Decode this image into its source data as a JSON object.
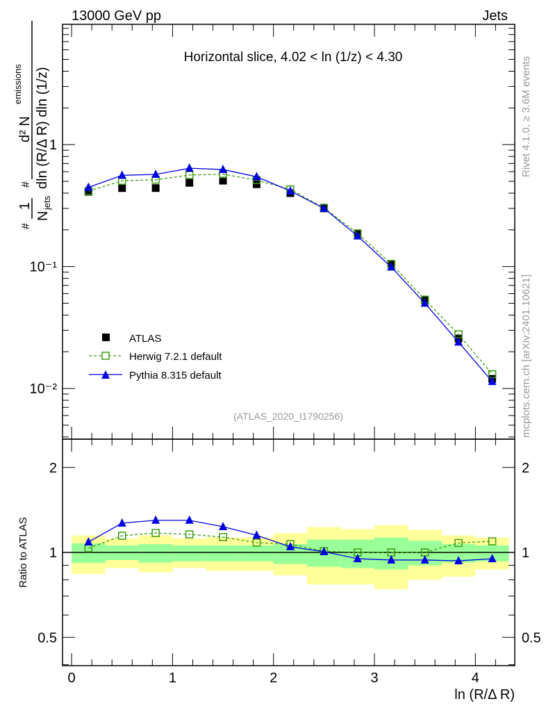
{
  "header": {
    "left": "13000 GeV pp",
    "right": "Jets"
  },
  "side": {
    "rivet": "Rivet 4.1.0, ≥ 3.6M events",
    "mcplots": "mcplots.cern.ch [arXiv:2401.10621]"
  },
  "chart_data": [
    {
      "type": "scatter",
      "title": "Horizontal slice, 4.02 < ln (1/z) < 4.30",
      "annotation": "(ATLAS_2020_I1790256)",
      "ylabel": "#frac{1}{N_{jets}} #frac{d² N_{emissions}}{dln (R/Δ R) dln (1/z)}",
      "ylabel_parts": {
        "one": "1",
        "njets": "N",
        "jets": "jets",
        "d2": "d² N",
        "emissions": "emissions",
        "den": "dln (R/Δ R) dln (1/z)",
        "hash": "#"
      },
      "yscale": "log",
      "ylim": [
        0.00384,
        9.7
      ],
      "yticks": [
        {
          "v": 1,
          "label": "1"
        },
        {
          "v": 0.1,
          "label": "10⁻¹"
        },
        {
          "v": 0.01,
          "label": "10⁻²"
        }
      ],
      "xlim": [
        -0.09,
        4.39
      ],
      "x": [
        0.167,
        0.5,
        0.833,
        1.167,
        1.5,
        1.833,
        2.167,
        2.5,
        2.833,
        3.167,
        3.5,
        3.833,
        4.167
      ],
      "legend": "middle-left",
      "series": [
        {
          "name": "ATLAS",
          "marker": "square-filled",
          "color": "#000000",
          "values": [
            0.41,
            0.44,
            0.44,
            0.486,
            0.506,
            0.473,
            0.4,
            0.3,
            0.187,
            0.105,
            0.053,
            0.0257,
            0.012
          ]
        },
        {
          "name": "Herwig 7.2.1 default",
          "marker": "square-open",
          "line": "dashed",
          "color": "#3a9a10",
          "values": [
            0.415,
            0.505,
            0.515,
            0.563,
            0.573,
            0.512,
            0.43,
            0.303,
            0.187,
            0.105,
            0.0535,
            0.0278,
            0.0131
          ]
        },
        {
          "name": "Pythia 8.315 default",
          "marker": "triangle",
          "line": "solid",
          "color": "#0000e0",
          "values": [
            0.446,
            0.56,
            0.57,
            0.64,
            0.625,
            0.545,
            0.417,
            0.3,
            0.178,
            0.099,
            0.05,
            0.024,
            0.0114
          ]
        }
      ]
    },
    {
      "type": "scatter",
      "ylabel": "Ratio to ATLAS",
      "xlabel": "ln (R/Δ R)",
      "yscale": "log",
      "ylim": [
        0.397,
        2.52
      ],
      "yticks": [
        {
          "v": 2,
          "label": "2"
        },
        {
          "v": 1,
          "label": "1"
        },
        {
          "v": 0.5,
          "label": "0.5"
        }
      ],
      "xticks": [
        {
          "v": 0,
          "label": "0"
        },
        {
          "v": 1,
          "label": "1"
        },
        {
          "v": 2,
          "label": "2"
        },
        {
          "v": 3,
          "label": "3"
        },
        {
          "v": 4,
          "label": "4"
        }
      ],
      "bin_edges": [
        0,
        0.333,
        0.667,
        1,
        1.333,
        1.667,
        2,
        2.333,
        2.667,
        3,
        3.333,
        3.667,
        4,
        4.333
      ],
      "band_yellow": [
        [
          0.84,
          1.15
        ],
        [
          0.88,
          1.12
        ],
        [
          0.85,
          1.15
        ],
        [
          0.88,
          1.12
        ],
        [
          0.86,
          1.13
        ],
        [
          0.86,
          1.13
        ],
        [
          0.83,
          1.17
        ],
        [
          0.77,
          1.23
        ],
        [
          0.77,
          1.21
        ],
        [
          0.74,
          1.25
        ],
        [
          0.8,
          1.2
        ],
        [
          0.82,
          1.15
        ],
        [
          0.87,
          1.13
        ]
      ],
      "band_green": [
        [
          0.918,
          1.077
        ],
        [
          0.94,
          1.06
        ],
        [
          0.92,
          1.07
        ],
        [
          0.93,
          1.06
        ],
        [
          0.93,
          1.06
        ],
        [
          0.93,
          1.06
        ],
        [
          0.91,
          1.07
        ],
        [
          0.89,
          1.11
        ],
        [
          0.88,
          1.11
        ],
        [
          0.87,
          1.13
        ],
        [
          0.9,
          1.1
        ],
        [
          0.92,
          1.07
        ],
        [
          0.93,
          1.06
        ]
      ],
      "series": [
        {
          "name": "Herwig 7.2.1 default",
          "color": "#3a9a10",
          "values": [
            1.035,
            1.146,
            1.172,
            1.159,
            1.133,
            1.083,
            1.07,
            1.01,
            1.0,
            1.0,
            1.0,
            1.08,
            1.095
          ]
        },
        {
          "name": "Pythia 8.315 default",
          "color": "#0000e0",
          "values": [
            1.089,
            1.27,
            1.3,
            1.3,
            1.234,
            1.15,
            1.047,
            1.006,
            0.95,
            0.94,
            0.94,
            0.934,
            0.95
          ]
        }
      ]
    }
  ]
}
